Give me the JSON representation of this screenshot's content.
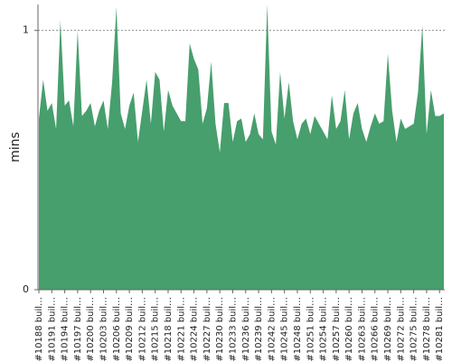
{
  "chart_data": {
    "type": "area",
    "y_label": "mins",
    "color": "#479f6d",
    "ylim": [
      0,
      1.1
    ],
    "yticks": [
      0,
      1
    ],
    "grid": true,
    "categories": [
      "#10188 buil…",
      null,
      null,
      "#10191 buil…",
      null,
      null,
      "#10194 buil…",
      null,
      null,
      "#10197 buil…",
      null,
      null,
      "#10200 buil…",
      null,
      null,
      "#10203 buil…",
      null,
      null,
      "#10206 buil…",
      null,
      null,
      "#10209 buil…",
      null,
      null,
      "#10212 buil…",
      null,
      null,
      "#10215 buil…",
      null,
      null,
      "#10218 buil…",
      null,
      null,
      "#10221 buil…",
      null,
      null,
      "#10224 buil…",
      null,
      null,
      "#10227 buil…",
      null,
      null,
      "#10230 buil…",
      null,
      null,
      "#10233 buil…",
      null,
      null,
      "#10236 buil…",
      null,
      null,
      "#10239 buil…",
      null,
      null,
      "#10242 buil…",
      null,
      null,
      "#10245 buil…",
      null,
      null,
      "#10248 buil…",
      null,
      null,
      "#10251 buil…",
      null,
      null,
      "#10254 buil…",
      null,
      null,
      "#10257 buil…",
      null,
      null,
      "#10260 buil…",
      null,
      null,
      "#10263 buil…",
      null,
      null,
      "#10266 buil…",
      null,
      null,
      "#10269 buil…",
      null,
      null,
      "#10272 buil…",
      null,
      null,
      "#10275 buil…",
      null,
      null,
      "#10278 buil…",
      null,
      null,
      "#10281 buil…",
      null
    ],
    "values": [
      0.66,
      0.81,
      0.69,
      0.72,
      0.62,
      1.04,
      0.71,
      0.73,
      0.63,
      1.0,
      0.67,
      0.69,
      0.72,
      0.63,
      0.69,
      0.73,
      0.62,
      0.8,
      1.09,
      0.68,
      0.62,
      0.71,
      0.76,
      0.57,
      0.69,
      0.81,
      0.64,
      0.84,
      0.81,
      0.61,
      0.77,
      0.71,
      0.68,
      0.65,
      0.65,
      0.95,
      0.89,
      0.85,
      0.64,
      0.7,
      0.88,
      0.64,
      0.53,
      0.72,
      0.72,
      0.57,
      0.65,
      0.66,
      0.57,
      0.6,
      0.68,
      0.6,
      0.58,
      1.1,
      0.61,
      0.56,
      0.84,
      0.66,
      0.8,
      0.65,
      0.58,
      0.64,
      0.66,
      0.6,
      0.67,
      0.64,
      0.61,
      0.58,
      0.75,
      0.62,
      0.65,
      0.77,
      0.58,
      0.68,
      0.72,
      0.62,
      0.57,
      0.63,
      0.68,
      0.64,
      0.65,
      0.91,
      0.69,
      0.57,
      0.66,
      0.62,
      0.63,
      0.64,
      0.76,
      1.02,
      0.6,
      0.77,
      0.67,
      0.67,
      0.68
    ]
  }
}
